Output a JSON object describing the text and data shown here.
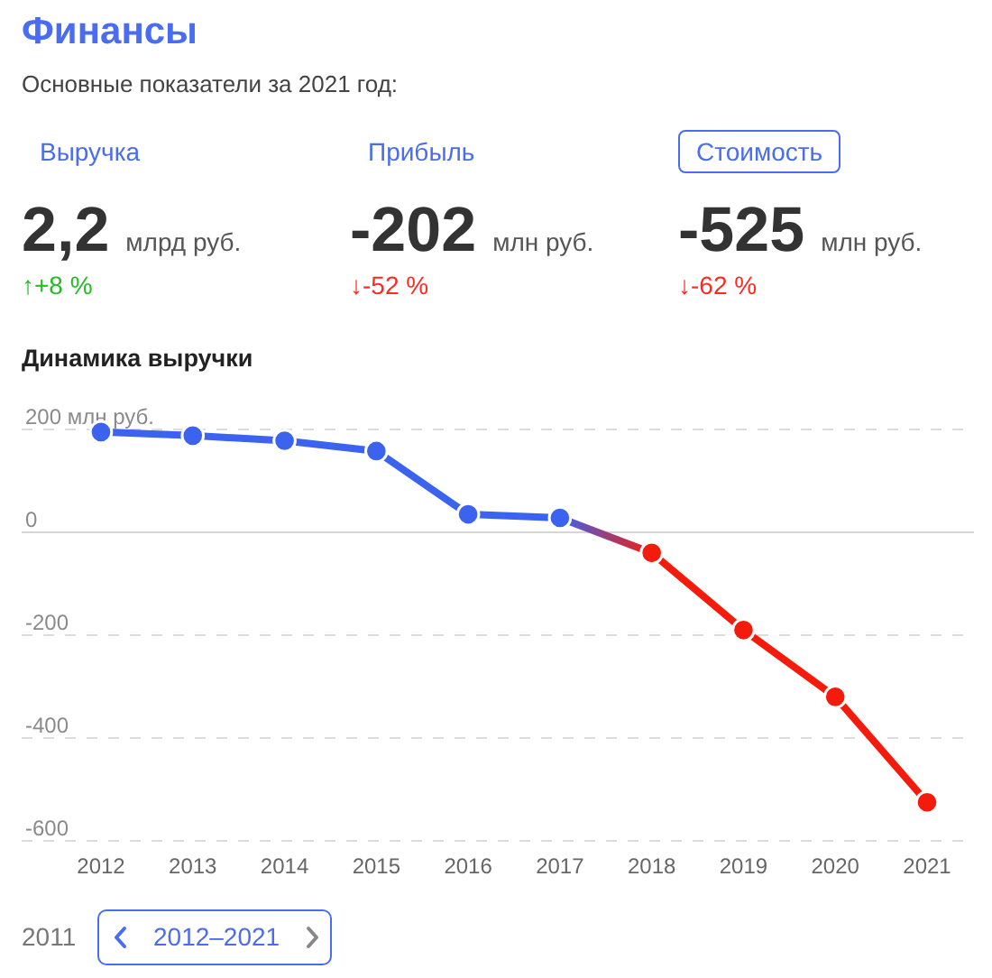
{
  "chart_data": [
    {
      "type": "other",
      "title": "Финансы",
      "subtitle": "Основные показатели за 2021 год:",
      "annotations": [
        "Выручка",
        "2,2",
        "млрд руб.",
        "↑+8 %",
        "Прибыль",
        "-202",
        "млн руб.",
        "↓-52 %",
        "Стоимость",
        "-525",
        "млн руб.",
        "↓-62 %"
      ],
      "colors": [
        "#22bb22",
        "#ff2a1f",
        "#ff2a1f"
      ]
    },
    {
      "type": "line",
      "title": "Динамика выручки",
      "categories": [
        "2012",
        "2013",
        "2014",
        "2015",
        "2016",
        "2017",
        "2018",
        "2019",
        "2020",
        "2021"
      ],
      "values": [
        195,
        188,
        178,
        158,
        35,
        28,
        -40,
        -190,
        -320,
        -525
      ],
      "colors": [
        "#3b63ef",
        "#3b63ef",
        "#3b63ef",
        "#3b63ef",
        "#3b63ef",
        "#3b63ef",
        "#f51b0c",
        "#f51b0c",
        "#f51b0c",
        "#f51b0c"
      ],
      "ylim": [
        -600,
        200
      ],
      "yticks": [
        {
          "value": 200,
          "label": "200 млн руб."
        },
        0,
        -200,
        -400,
        -600
      ],
      "grid": "y",
      "marker": "circle",
      "annotations": [
        "2011",
        "2012–2021"
      ]
    }
  ]
}
